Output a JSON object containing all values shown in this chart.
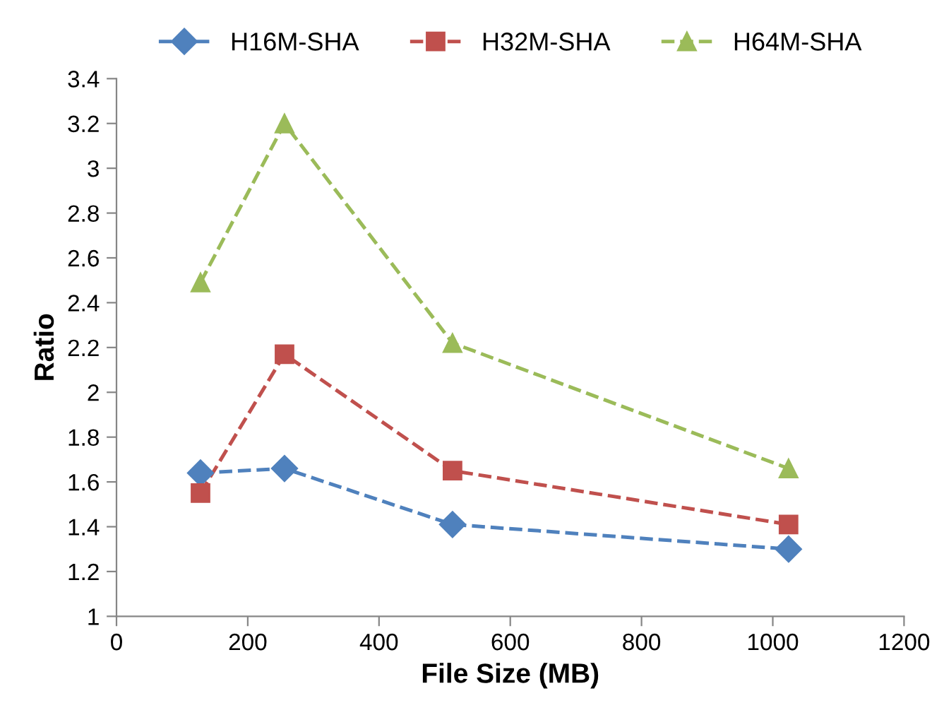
{
  "chart_data": {
    "type": "line",
    "xlabel": "File Size (MB)",
    "ylabel": "Ratio",
    "x": [
      128,
      256,
      512,
      1024
    ],
    "series": [
      {
        "name": "H16M-SHA",
        "color": "#4f81bd",
        "marker": "diamond",
        "values": [
          1.64,
          1.66,
          1.41,
          1.3
        ]
      },
      {
        "name": "H32M-SHA",
        "color": "#c0504d",
        "marker": "square",
        "values": [
          1.55,
          2.17,
          1.65,
          1.41
        ]
      },
      {
        "name": "H64M-SHA",
        "color": "#9bbb59",
        "marker": "triangle",
        "values": [
          2.49,
          3.2,
          2.22,
          1.66
        ]
      }
    ],
    "line_style": "dashed",
    "xlim": [
      0,
      1200
    ],
    "xticks": [
      0,
      200,
      400,
      600,
      800,
      1000,
      1200
    ],
    "ylim": [
      1,
      3.4
    ],
    "yticks": [
      1,
      1.2,
      1.4,
      1.6,
      1.8,
      2,
      2.2,
      2.4,
      2.6,
      2.8,
      3,
      3.2,
      3.4
    ],
    "grid": false,
    "legend": "top"
  }
}
